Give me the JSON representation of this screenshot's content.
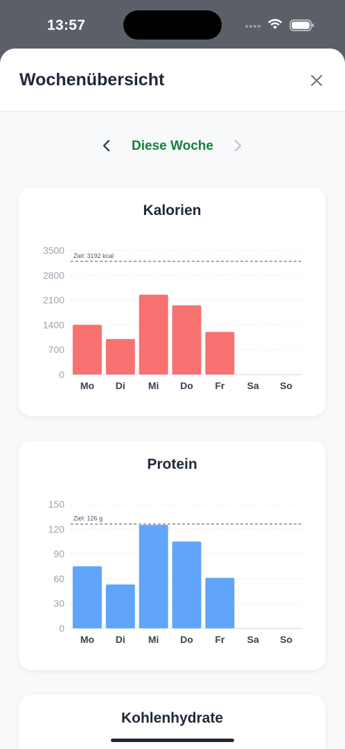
{
  "status_bar": {
    "time": "13:57"
  },
  "header": {
    "title": "Wochenübersicht"
  },
  "week_nav": {
    "label": "Diese Woche"
  },
  "cards": [
    {
      "title": "Kalorien",
      "goal_label": "Ziel: 3192 kcal",
      "chart_data": {
        "type": "bar",
        "title": "Kalorien",
        "categories": [
          "Mo",
          "Di",
          "Mi",
          "Do",
          "Fr",
          "Sa",
          "So"
        ],
        "values": [
          1400,
          1000,
          2250,
          1950,
          1200,
          0,
          0
        ],
        "yticks": [
          0,
          700,
          1400,
          2100,
          2800,
          3500
        ],
        "ylim": [
          0,
          3500
        ],
        "goal": 3192,
        "color": "#f87171",
        "grid": true
      }
    },
    {
      "title": "Protein",
      "goal_label": "Ziel: 126 g",
      "chart_data": {
        "type": "bar",
        "title": "Protein",
        "categories": [
          "Mo",
          "Di",
          "Mi",
          "Do",
          "Fr",
          "Sa",
          "So"
        ],
        "values": [
          75,
          53,
          125,
          105,
          61,
          0,
          0
        ],
        "yticks": [
          0,
          30,
          60,
          90,
          120,
          150
        ],
        "ylim": [
          0,
          150
        ],
        "goal": 126,
        "color": "#60a5fa",
        "grid": true
      }
    },
    {
      "title": "Kohlenhydrate"
    }
  ],
  "icons": {
    "close": "close-icon",
    "prev": "chevron-left-icon",
    "next": "chevron-right-icon"
  }
}
